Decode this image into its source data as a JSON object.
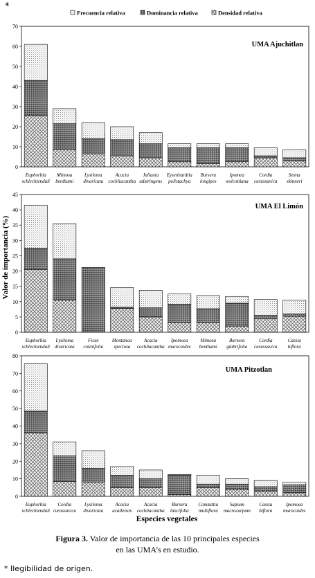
{
  "top_mark": "*",
  "legend": [
    {
      "label": "Frecuencia relativa",
      "pattern": "pat-freq"
    },
    {
      "label": "Dominancia relativa",
      "pattern": "pat-dom"
    },
    {
      "label": "Densidad relativa",
      "pattern": "pat-dens"
    }
  ],
  "ylabel": "Valor de importancia (%)",
  "xlabel": "Especies vegetales",
  "caption": {
    "label": "Figura 3.",
    "line1": " Valor de importancia de las 10 principales especies",
    "line2": "en las UMA’s en estudio."
  },
  "footnote": "*  Ilegibilidad de origen.",
  "chart_data": [
    {
      "type": "bar",
      "stacked": true,
      "title": "UMA Ajuchitlan",
      "ylim": [
        0,
        70
      ],
      "yticks": [
        0,
        10,
        20,
        30,
        40,
        50,
        60,
        70
      ],
      "categories": [
        [
          "Euphorbia",
          "schlechtendali"
        ],
        [
          "Mimosa",
          "benthami"
        ],
        [
          "Lysiloma",
          "divaricata"
        ],
        [
          "Acacia",
          "cochliacantha"
        ],
        [
          "Juliania",
          "adstringens"
        ],
        [
          "Eysenhardtia",
          "polistachya"
        ],
        [
          "Bursera",
          "longipes"
        ],
        [
          "Ipomea",
          "wolcottiana"
        ],
        [
          "Cordia",
          "curassavica"
        ],
        [
          "Senna",
          "skinneri"
        ]
      ],
      "series": [
        {
          "name": "Densidad relativa",
          "values": [
            25.5,
            8.5,
            6.5,
            5.5,
            4.5,
            2.5,
            1.5,
            2.5,
            4.5,
            3.0
          ]
        },
        {
          "name": "Dominancia relativa",
          "values": [
            17.5,
            13.0,
            7.5,
            8.0,
            7.0,
            7.0,
            8.0,
            7.0,
            1.0,
            1.5
          ]
        },
        {
          "name": "Frecuencia relativa",
          "values": [
            18.0,
            7.5,
            8.0,
            6.5,
            5.5,
            2.0,
            2.0,
            2.0,
            4.0,
            4.0
          ]
        }
      ]
    },
    {
      "type": "bar",
      "stacked": true,
      "title": "UMA El Limón",
      "ylim": [
        0,
        45
      ],
      "yticks": [
        0,
        5,
        10,
        15,
        20,
        25,
        30,
        35,
        40,
        45
      ],
      "categories": [
        [
          "Euphorbia",
          "schlechtendali"
        ],
        [
          "Lysiloma",
          "divaricata"
        ],
        [
          "Ficus",
          "cotinifolia"
        ],
        [
          "Montanoa",
          "speciosa"
        ],
        [
          "Acacia",
          "cochliacantha"
        ],
        [
          "Ipomoea",
          "murocoides"
        ],
        [
          "Mimosa",
          "benthami"
        ],
        [
          "Bursera",
          "glabrifolia"
        ],
        [
          "Cordia",
          "curassavica"
        ],
        [
          "Cassia",
          "biflora"
        ]
      ],
      "series": [
        {
          "name": "Densidad relativa",
          "values": [
            20.5,
            10.5,
            0,
            7.8,
            5.0,
            3.2,
            3.2,
            2.0,
            4.5,
            5.2
          ]
        },
        {
          "name": "Dominancia relativa",
          "values": [
            7.0,
            13.5,
            21.2,
            0.4,
            3.0,
            6.0,
            4.5,
            7.5,
            1.0,
            0.8
          ]
        },
        {
          "name": "Frecuencia relativa",
          "values": [
            14.0,
            11.5,
            0,
            6.4,
            5.7,
            3.3,
            4.3,
            2.2,
            5.2,
            4.5
          ]
        }
      ]
    },
    {
      "type": "bar",
      "stacked": true,
      "title": "UMA Pitzotlan",
      "ylim": [
        0,
        80
      ],
      "yticks": [
        0,
        10,
        20,
        30,
        40,
        50,
        60,
        70,
        80
      ],
      "categories": [
        [
          "Euphorbia",
          "schlechtendali"
        ],
        [
          "Cordia",
          "curassavica"
        ],
        [
          "Lysiloma",
          "divaricata"
        ],
        [
          "Acacia",
          "acatlensis"
        ],
        [
          "Acacia",
          "cochliacantha"
        ],
        [
          "Bursera",
          "lancifolia"
        ],
        [
          "Comzattia",
          "multiflora"
        ],
        [
          "Sapium",
          "macrocarpum"
        ],
        [
          "Cassia",
          "biflora"
        ],
        [
          "Ipomoea",
          "murocoides"
        ]
      ],
      "series": [
        {
          "name": "Densidad relativa",
          "values": [
            36.0,
            8.5,
            8.0,
            5.0,
            5.0,
            1.0,
            5.0,
            4.0,
            3.0,
            2.0
          ]
        },
        {
          "name": "Dominancia relativa",
          "values": [
            12.5,
            14.5,
            8.0,
            7.0,
            5.0,
            11.0,
            2.0,
            3.0,
            2.5,
            4.5
          ]
        },
        {
          "name": "Frecuencia relativa",
          "values": [
            27.0,
            8.0,
            10.0,
            5.0,
            5.0,
            0.5,
            5.0,
            3.0,
            3.5,
            1.5
          ]
        }
      ]
    }
  ]
}
